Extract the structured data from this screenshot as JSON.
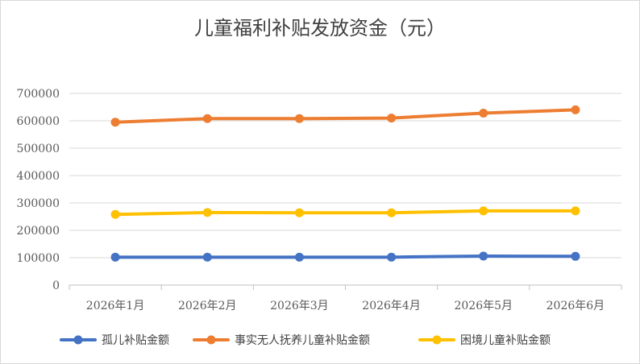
{
  "chart_data": {
    "type": "line",
    "title": "儿童福利补贴发放资金（元）",
    "categories": [
      "2026年1月",
      "2026年2月",
      "2026年3月",
      "2026年4月",
      "2026年5月",
      "2026年6月"
    ],
    "ylim": [
      0,
      700000
    ],
    "yticks": [
      0,
      100000,
      200000,
      300000,
      400000,
      500000,
      600000,
      700000
    ],
    "grid": true,
    "legend_position": "bottom",
    "series": [
      {
        "name": "孤儿补贴金额",
        "color": "#4472c4",
        "values": [
          102000,
          102000,
          102000,
          102000,
          106000,
          105000
        ]
      },
      {
        "name": "事实无人抚养儿童补贴金额",
        "color": "#ed7d31",
        "values": [
          595000,
          608000,
          608000,
          610000,
          628000,
          640000
        ]
      },
      {
        "name": "困境儿童补贴金额",
        "color": "#ffc000",
        "values": [
          258000,
          265000,
          264000,
          264000,
          271000,
          271000
        ]
      }
    ]
  }
}
